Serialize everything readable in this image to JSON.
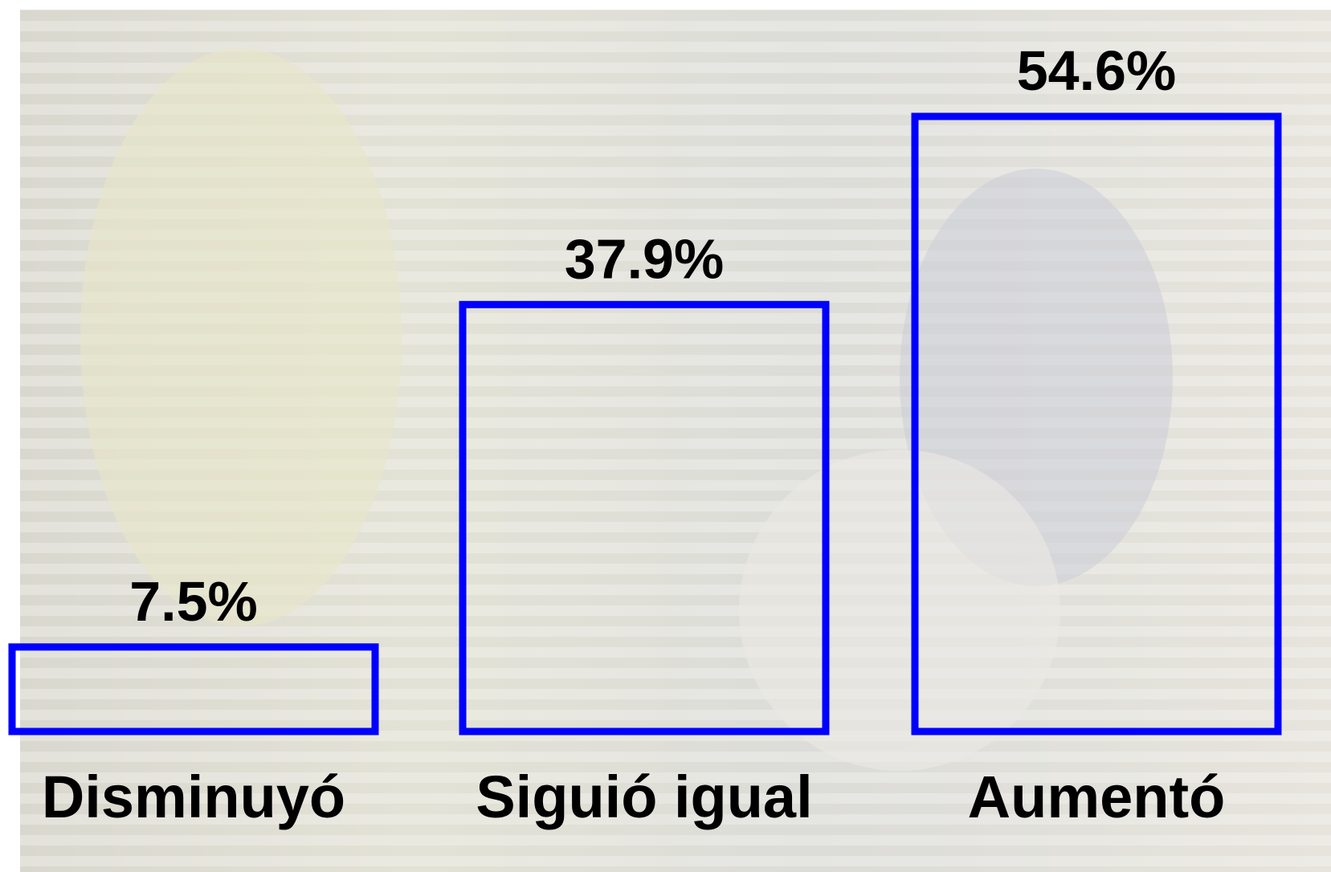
{
  "chart_data": {
    "type": "bar",
    "categories": [
      "Disminuyó",
      "Siguió igual",
      "Aumentó"
    ],
    "values": [
      7.5,
      37.9,
      54.6
    ],
    "value_labels": [
      "7.5%",
      "37.9%",
      "54.6%"
    ],
    "color": "#0000ff"
  }
}
